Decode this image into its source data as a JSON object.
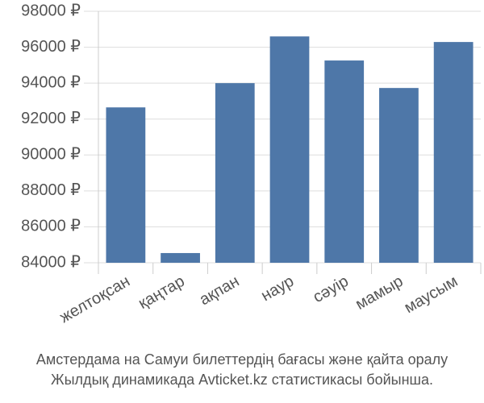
{
  "chart_data": {
    "type": "bar",
    "title": "Амстердама на Самуи билеттердің бағасы және қайта оралу",
    "subtitle": "Жылдық динамикада Avticket.kz статистикасы бойынша.",
    "categories": [
      "желтоқсан",
      "қаңтар",
      "ақпан",
      "наур",
      "сәуір",
      "мамыр",
      "маусым"
    ],
    "values": [
      92650,
      84540,
      94000,
      96600,
      95260,
      93730,
      96290
    ],
    "color": "#4e77a8",
    "ylim": [
      84000,
      98000
    ],
    "yticks": [
      {
        "value": 84000,
        "label": "84000 ₽"
      },
      {
        "value": 86000,
        "label": "86000 ₽"
      },
      {
        "value": 88000,
        "label": "88000 ₽"
      },
      {
        "value": 90000,
        "label": "90000 ₽"
      },
      {
        "value": 92000,
        "label": "92000 ₽"
      },
      {
        "value": 94000,
        "label": "94000 ₽"
      },
      {
        "value": 96000,
        "label": "96000 ₽"
      },
      {
        "value": 98000,
        "label": "98000 ₽"
      }
    ],
    "grid": true
  }
}
